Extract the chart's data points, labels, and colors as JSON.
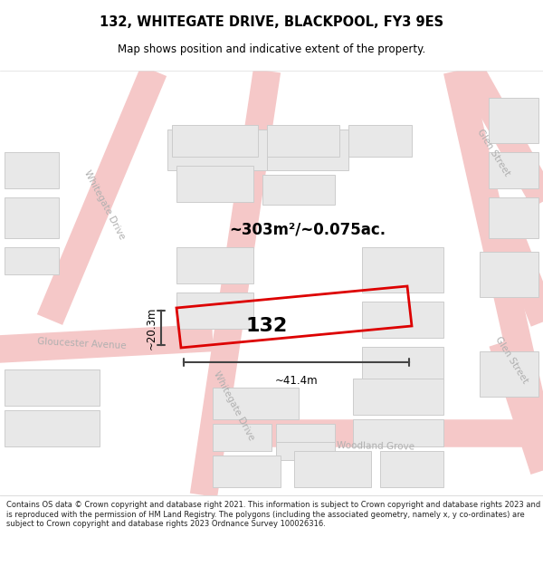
{
  "title": "132, WHITEGATE DRIVE, BLACKPOOL, FY3 9ES",
  "subtitle": "Map shows position and indicative extent of the property.",
  "footer": "Contains OS data © Crown copyright and database right 2021. This information is subject to Crown copyright and database rights 2023 and is reproduced with the permission of HM Land Registry. The polygons (including the associated geometry, namely x, y co-ordinates) are subject to Crown copyright and database rights 2023 Ordnance Survey 100026316.",
  "area_label": "~303m²/~0.075ac.",
  "width_label": "~41.4m",
  "height_label": "~20.3m",
  "property_label": "132",
  "map_bg": "#ffffff",
  "road_color": "#f5c8c8",
  "building_fill": "#e8e8e8",
  "building_edge": "#cccccc",
  "highlight_outline": "#dd0000",
  "dim_line_color": "#444444",
  "street_label_color": "#b0b0b0",
  "title_fontsize": 10.5,
  "subtitle_fontsize": 8.5,
  "footer_fontsize": 6.0
}
